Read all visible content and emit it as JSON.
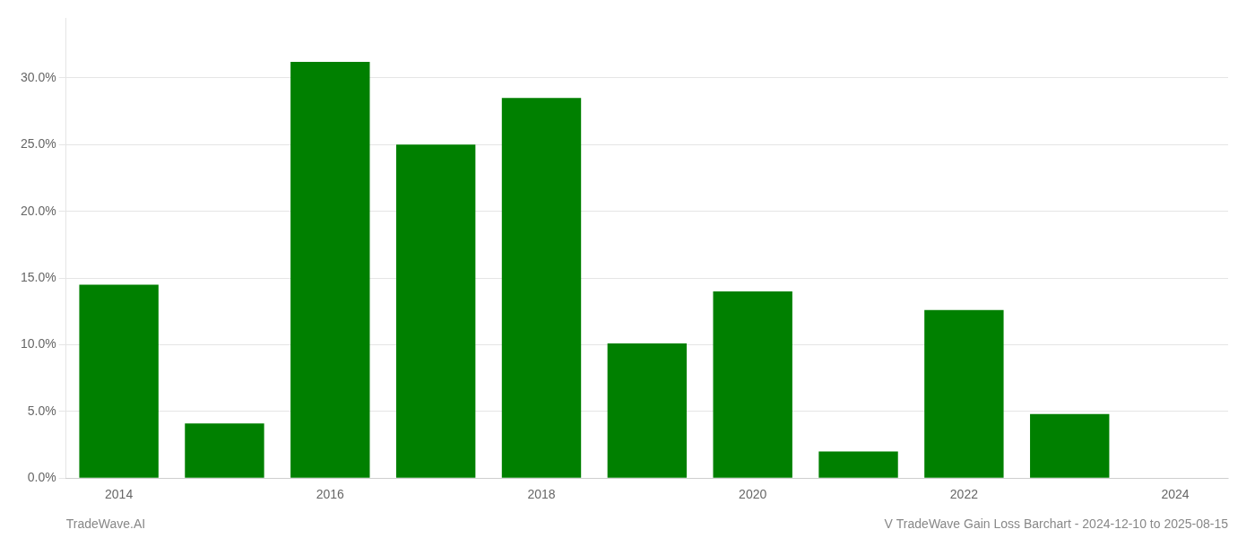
{
  "chart_data": {
    "type": "bar",
    "categories": [
      "2014",
      null,
      "2016",
      null,
      "2018",
      null,
      "2020",
      null,
      "2022",
      null,
      "2024"
    ],
    "values": [
      0.145,
      0.041,
      0.312,
      0.25,
      0.285,
      0.101,
      0.14,
      0.02,
      0.126,
      0.048,
      0.0
    ],
    "color": "#008000",
    "ylim": [
      0,
      0.345
    ],
    "yticks": [
      {
        "value": 0.0,
        "label": "0.0%"
      },
      {
        "value": 0.05,
        "label": "5.0%"
      },
      {
        "value": 0.1,
        "label": "10.0%"
      },
      {
        "value": 0.15,
        "label": "15.0%"
      },
      {
        "value": 0.2,
        "label": "20.0%"
      },
      {
        "value": 0.25,
        "label": "25.0%"
      },
      {
        "value": 0.3,
        "label": "30.0%"
      }
    ],
    "grid": true,
    "annotations": [
      "TradeWave.AI",
      "V TradeWave Gain Loss Barchart - 2024-12-10 to 2025-08-15"
    ]
  }
}
